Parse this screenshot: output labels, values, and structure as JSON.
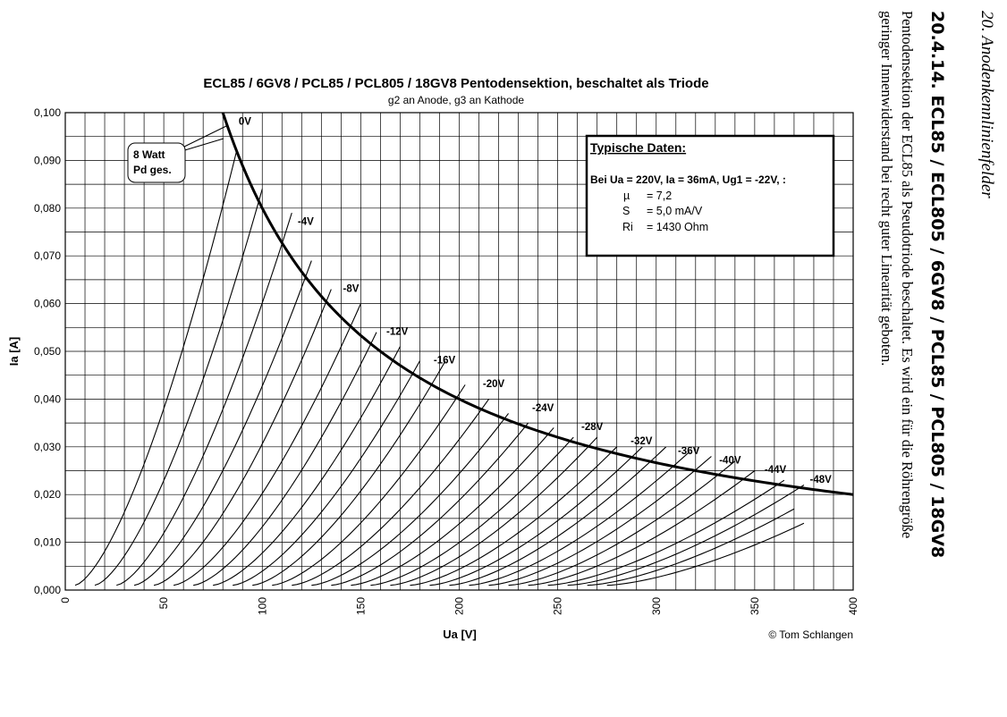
{
  "side_text": {
    "running_header": "20. Anodenkennlinienfelder",
    "section_title": "20.4.14.  ECL85 / ECL805 / 6GV8 / PCL85 / PCL805 / 18GV8",
    "body_line1": "Pentodensektion der ECL85 als Pseudotriode beschaltet. Es wird ein für die Röhrengröße",
    "body_line2": "geringer Innenwiderstand bei recht guter Linearität geboten."
  },
  "chart_data": {
    "type": "line",
    "title": "ECL85 / 6GV8 / PCL85 /  PCL805 / 18GV8 Pentodensektion, beschaltet als Triode",
    "subtitle": "g2 an Anode, g3 an Kathode",
    "xlabel": "Ua [V]",
    "ylabel": "Ia [A]",
    "xlim": [
      0,
      400
    ],
    "ylim": [
      0,
      0.1
    ],
    "x_major_ticks": [
      "0",
      "50",
      "100",
      "150",
      "200",
      "250",
      "300",
      "350",
      "400"
    ],
    "y_major_ticks": [
      "0,000",
      "0,010",
      "0,020",
      "0,030",
      "0,040",
      "0,050",
      "0,060",
      "0,070",
      "0,080",
      "0,090",
      "0,100"
    ],
    "x_grid_step": 10,
    "y_grid_step": 0.005,
    "grid": true,
    "copyright": "© Tom Schlangen",
    "pd_curve": {
      "name": "8 Watt Pd ges.",
      "power_W": 8,
      "x_range": [
        80,
        400
      ]
    },
    "callout": {
      "line1": "8 Watt",
      "line2": "Pd ges."
    },
    "info_box": {
      "title": "Typische Daten:",
      "line1": "Bei Ua = 220V, Ia = 36mA, Ug1 = -22V, :",
      "params": [
        {
          "symbol": "µ",
          "value": "= 7,2"
        },
        {
          "symbol": "S",
          "value": "= 5,0 mA/V"
        },
        {
          "symbol": "Ri",
          "value": "= 1430 Ohm"
        }
      ]
    },
    "series": [
      {
        "ug1": 0,
        "start": [
          5,
          0.001
        ],
        "end": [
          87,
          0.092
        ]
      },
      {
        "ug1": -2,
        "start": [
          15,
          0.001
        ],
        "end": [
          100,
          0.084
        ]
      },
      {
        "ug1": -4,
        "start": [
          26,
          0.001
        ],
        "end": [
          115,
          0.079
        ]
      },
      {
        "ug1": -6,
        "start": [
          35,
          0.001
        ],
        "end": [
          125,
          0.069
        ]
      },
      {
        "ug1": -8,
        "start": [
          45,
          0.001
        ],
        "end": [
          135,
          0.063
        ]
      },
      {
        "ug1": -10,
        "start": [
          55,
          0.001
        ],
        "end": [
          150,
          0.06
        ]
      },
      {
        "ug1": -12,
        "start": [
          65,
          0.001
        ],
        "end": [
          158,
          0.054
        ]
      },
      {
        "ug1": -14,
        "start": [
          75,
          0.001
        ],
        "end": [
          170,
          0.051
        ]
      },
      {
        "ug1": -16,
        "start": [
          85,
          0.001
        ],
        "end": [
          180,
          0.048
        ]
      },
      {
        "ug1": -18,
        "start": [
          95,
          0.001
        ],
        "end": [
          193,
          0.048
        ]
      },
      {
        "ug1": -20,
        "start": [
          105,
          0.001
        ],
        "end": [
          203,
          0.043
        ]
      },
      {
        "ug1": -22,
        "start": [
          115,
          0.001
        ],
        "end": [
          215,
          0.04
        ]
      },
      {
        "ug1": -24,
        "start": [
          125,
          0.001
        ],
        "end": [
          225,
          0.037
        ]
      },
      {
        "ug1": -26,
        "start": [
          135,
          0.001
        ],
        "end": [
          235,
          0.035
        ]
      },
      {
        "ug1": -28,
        "start": [
          145,
          0.001
        ],
        "end": [
          248,
          0.034
        ]
      },
      {
        "ug1": -30,
        "start": [
          155,
          0.001
        ],
        "end": [
          258,
          0.032
        ]
      },
      {
        "ug1": -32,
        "start": [
          165,
          0.001
        ],
        "end": [
          270,
          0.032
        ]
      },
      {
        "ug1": -34,
        "start": [
          175,
          0.001
        ],
        "end": [
          280,
          0.03
        ]
      },
      {
        "ug1": -36,
        "start": [
          185,
          0.001
        ],
        "end": [
          293,
          0.03
        ]
      },
      {
        "ug1": -38,
        "start": [
          195,
          0.001
        ],
        "end": [
          305,
          0.03
        ]
      },
      {
        "ug1": -40,
        "start": [
          205,
          0.001
        ],
        "end": [
          317,
          0.029
        ]
      },
      {
        "ug1": -42,
        "start": [
          215,
          0.001
        ],
        "end": [
          328,
          0.028
        ]
      },
      {
        "ug1": -44,
        "start": [
          225,
          0.001
        ],
        "end": [
          340,
          0.027
        ]
      },
      {
        "ug1": -46,
        "start": [
          235,
          0.001
        ],
        "end": [
          350,
          0.025
        ]
      },
      {
        "ug1": -48,
        "start": [
          245,
          0.001
        ],
        "end": [
          365,
          0.023
        ]
      },
      {
        "ug1": -50,
        "start": [
          255,
          0.001
        ],
        "end": [
          375,
          0.022
        ]
      },
      {
        "ug1": -52,
        "start": [
          265,
          0.001
        ],
        "end": [
          370,
          0.017
        ]
      },
      {
        "ug1": -54,
        "start": [
          275,
          0.001
        ],
        "end": [
          375,
          0.014
        ]
      }
    ],
    "curve_labels": [
      {
        "text": "0V",
        "x": 88,
        "y": 0.0975
      },
      {
        "text": "-4V",
        "x": 118,
        "y": 0.0765
      },
      {
        "text": "-8V",
        "x": 141,
        "y": 0.0625
      },
      {
        "text": "-12V",
        "x": 163,
        "y": 0.0535
      },
      {
        "text": "-16V",
        "x": 187,
        "y": 0.0475
      },
      {
        "text": "-20V",
        "x": 212,
        "y": 0.0425
      },
      {
        "text": "-24V",
        "x": 237,
        "y": 0.0375
      },
      {
        "text": "-28V",
        "x": 262,
        "y": 0.0335
      },
      {
        "text": "-32V",
        "x": 287,
        "y": 0.0305
      },
      {
        "text": "-36V",
        "x": 311,
        "y": 0.0285
      },
      {
        "text": "-40V",
        "x": 332,
        "y": 0.0265
      },
      {
        "text": "-44V",
        "x": 355,
        "y": 0.0245
      },
      {
        "text": "-48V",
        "x": 378,
        "y": 0.0225
      }
    ]
  }
}
